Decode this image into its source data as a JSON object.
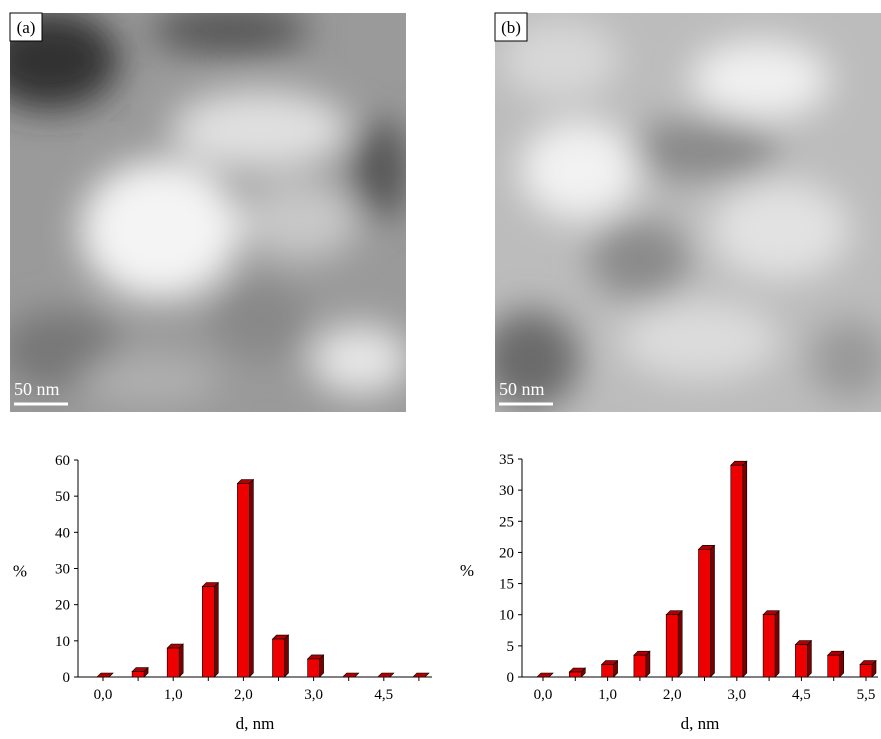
{
  "images": [
    {
      "label": "(a)",
      "scale_bar": "50 nm"
    },
    {
      "label": "(b)",
      "scale_bar": "50 nm"
    }
  ],
  "chart_data": [
    {
      "type": "bar",
      "ylabel": "%",
      "xlabel": "d, nm",
      "color": "#ee0000",
      "categories": [
        "0,0",
        null,
        "1,0",
        null,
        "2,0",
        null,
        "3,0",
        null,
        "4,5",
        null
      ],
      "values": [
        0,
        1.5,
        8,
        25,
        53.5,
        10.5,
        5,
        0,
        0,
        0
      ],
      "ylim": [
        0,
        60
      ],
      "yticks": [
        0,
        10,
        20,
        30,
        40,
        50,
        60
      ]
    },
    {
      "type": "bar",
      "ylabel": "%",
      "xlabel": "d, nm",
      "color": "#ee0000",
      "categories": [
        "0,0",
        null,
        "1,0",
        null,
        "2,0",
        null,
        "3,0",
        null,
        "4,5",
        null,
        "5,5"
      ],
      "values": [
        0,
        0.8,
        2,
        3.5,
        10,
        20.5,
        34,
        10,
        5.2,
        3.5,
        2
      ],
      "ylim": [
        0,
        35
      ],
      "yticks": [
        0,
        5,
        10,
        15,
        20,
        25,
        30,
        35
      ]
    }
  ]
}
